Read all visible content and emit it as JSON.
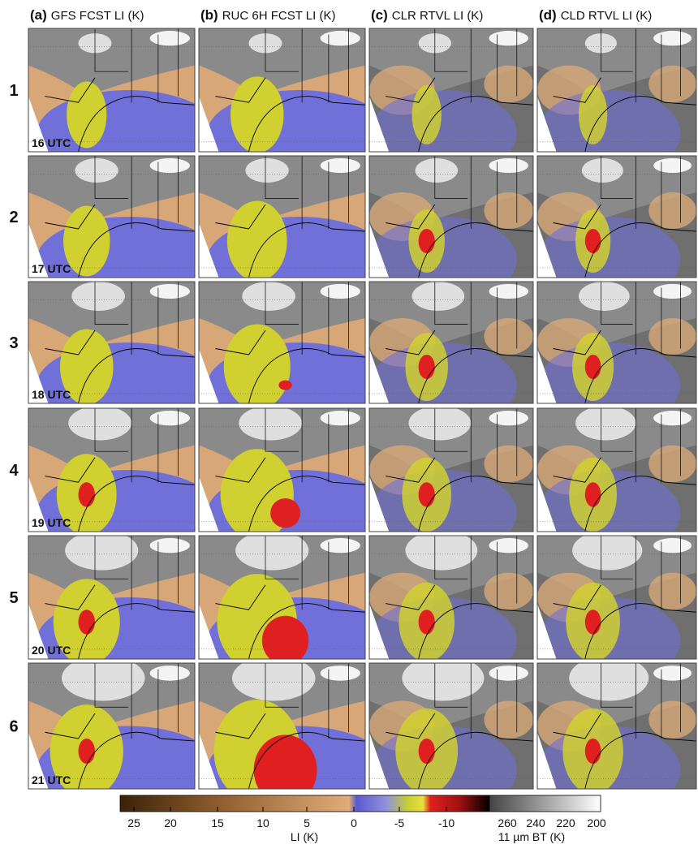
{
  "columns": [
    {
      "letter": "(a)",
      "title": "GFS FCST LI (K)"
    },
    {
      "letter": "(b)",
      "title": "RUC 6H FCST LI (K)"
    },
    {
      "letter": "(c)",
      "title": "CLR RTVL LI (K)"
    },
    {
      "letter": "(d)",
      "title": "CLD RTVL LI (K)"
    }
  ],
  "rows": [
    {
      "label": "1",
      "time": "16 UTC"
    },
    {
      "label": "2",
      "time": "17 UTC"
    },
    {
      "label": "3",
      "time": "18 UTC"
    },
    {
      "label": "4",
      "time": "19 UTC"
    },
    {
      "label": "5",
      "time": "20 UTC"
    },
    {
      "label": "6",
      "time": "21 UTC"
    }
  ],
  "colorbar": {
    "li_ticks": [
      "25",
      "20",
      "15",
      "10",
      "5",
      "0",
      "-5",
      "-10"
    ],
    "bt_ticks": [
      "260",
      "240",
      "220",
      "200"
    ],
    "li_label": "LI (K)",
    "bt_label": "11 µm BT (K)"
  }
}
